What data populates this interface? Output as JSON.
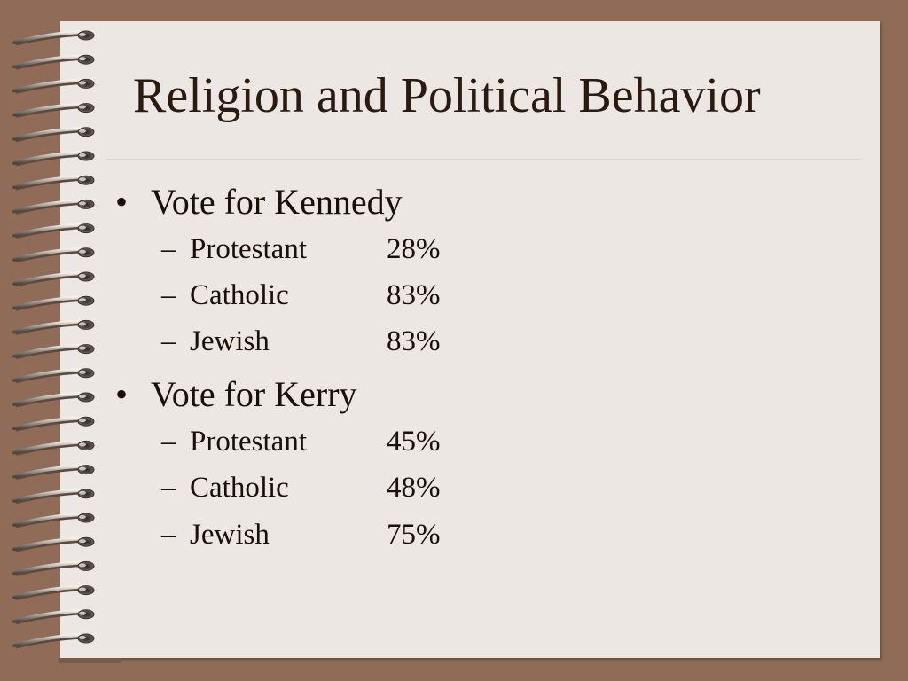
{
  "slide": {
    "title": "Religion and Political Behavior",
    "bullets": [
      {
        "text": "Vote for Kennedy",
        "items": [
          {
            "label": "Protestant",
            "value": "28%"
          },
          {
            "label": "Catholic",
            "value": "83%"
          },
          {
            "label": "Jewish",
            "value": "83%"
          }
        ]
      },
      {
        "text": "Vote for Kerry",
        "items": [
          {
            "label": "Protestant",
            "value": "45%"
          },
          {
            "label": "Catholic",
            "value": "48%"
          },
          {
            "label": "Jewish",
            "value": "75%"
          }
        ]
      }
    ],
    "bullet_glyph": "•",
    "dash_glyph": "–"
  },
  "colors": {
    "background": "#8f6b58",
    "paper": "#ece7e3",
    "text": "#1a1008"
  },
  "icons": {
    "binding": "spiral-binding-icon"
  }
}
